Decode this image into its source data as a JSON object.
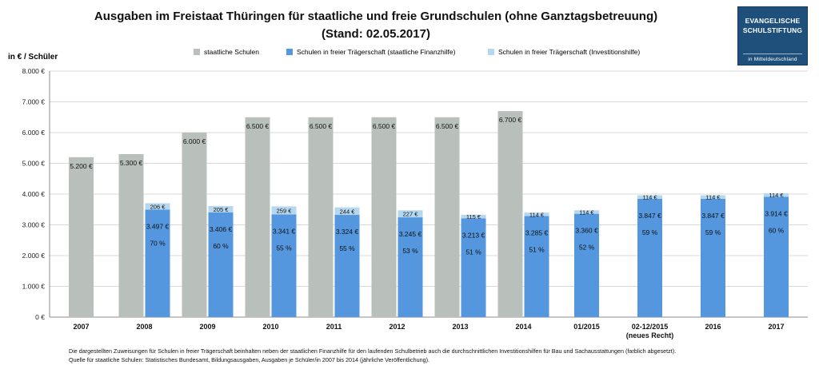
{
  "title_line1": "Ausgaben im Freistaat Thüringen für staatliche und freie Grundschulen (ohne Ganztagsbetreuung)",
  "title_line2": "(Stand: 02.05.2017)",
  "logo": {
    "line1": "EVANGELISCHE",
    "line2": "SCHULSTIFTUNG",
    "line3": "in Mitteldeutschland",
    "color": "#1f4f7b"
  },
  "footnote1": "Die dargestellten Zuweisungen für Schulen in freier Trägerschaft beinhalten neben der staatlichen Finanzhilfe für den laufenden Schulbetrieb auch die durchschnittlichen Investitionshilfen für Bau und Sachausstattungen (farblich abgesetzt).",
  "footnote2": "Quelle für staatliche Schulen: Statistisches Bundesamt, Bildungsausgaben, Ausgaben je Schüler/in 2007 bis 2014 (jährliche Veröffentlichung).",
  "chart_data": {
    "type": "bar",
    "ylabel": "in € / Schüler",
    "ylim": [
      0,
      8000
    ],
    "yticks": [
      0,
      1000,
      2000,
      3000,
      4000,
      5000,
      6000,
      7000,
      8000
    ],
    "ytick_labels": [
      "0 €",
      "1.000 €",
      "2.000 €",
      "3.000 €",
      "4.000 €",
      "5.000 €",
      "6.000 €",
      "7.000 €",
      "8.000 €"
    ],
    "grid": true,
    "legend_position": "top",
    "categories": [
      "2007",
      "2008",
      "2009",
      "2010",
      "2011",
      "2012",
      "2013",
      "2014",
      "01/2015",
      "02-12/2015\n(neues Recht)",
      "2016",
      "2017"
    ],
    "colors": {
      "staatlich": "#b9c0bb",
      "finanzhilfe": "#5597de",
      "invest": "#b5d7ef"
    },
    "series": [
      {
        "name": "staatliche Schulen",
        "key": "staatlich",
        "values": [
          5200,
          5300,
          6000,
          6500,
          6500,
          6500,
          6500,
          6700,
          null,
          null,
          null,
          null
        ],
        "labels": [
          "5.200 €",
          "5.300 €",
          "6.000 €",
          "6.500 €",
          "6.500 €",
          "6.500 €",
          "6.500 €",
          "6.700 €",
          null,
          null,
          null,
          null
        ]
      },
      {
        "name": "Schulen in freier Trägerschaft (staatliche Finanzhilfe)",
        "key": "finanzhilfe",
        "values": [
          null,
          3497,
          3406,
          3341,
          3324,
          3245,
          3213,
          3285,
          3360,
          3847,
          3847,
          3914
        ],
        "labels": [
          null,
          "3.497 €",
          "3.406 €",
          "3.341 €",
          "3.324 €",
          "3.245 €",
          "3.213 €",
          "3.285 €",
          "3.360 €",
          "3.847 €",
          "3.847 €",
          "3.914 €"
        ],
        "percent_labels": [
          null,
          "70 %",
          "60 %",
          "55 %",
          "55 %",
          "53 %",
          "51 %",
          "51 %",
          "52 %",
          "59 %",
          "59 %",
          "60 %"
        ]
      },
      {
        "name": "Schulen in freier Trägerschaft (Investitionshilfe)",
        "key": "invest",
        "values": [
          null,
          206,
          205,
          259,
          244,
          227,
          115,
          114,
          114,
          114,
          114,
          114
        ],
        "labels": [
          null,
          "206 €",
          "205 €",
          "259 €",
          "244 €",
          "227 €",
          "115 €",
          "114 €",
          "114 €",
          "114 €",
          "114 €",
          "114 €"
        ]
      }
    ]
  }
}
